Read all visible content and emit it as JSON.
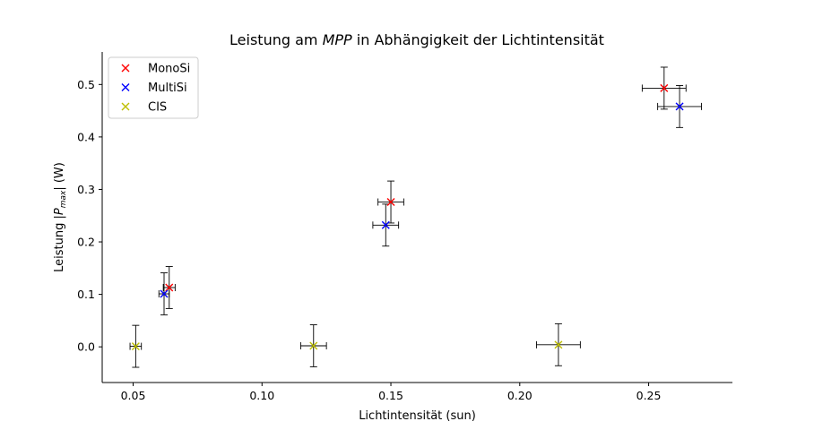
{
  "chart_data": {
    "type": "scatter",
    "title": "Leistung am MPP in Abhängigkeit der Lichtintensität",
    "title_parts": {
      "prefix": "Leistung am ",
      "italic": "MPP",
      "suffix": " in Abhängigkeit der Lichtintensität"
    },
    "xlabel": "Lichtintensität (sun)",
    "ylabel": "Leistung |P_max| (W)",
    "ylabel_parts": {
      "prefix": "Leistung |",
      "var": "P",
      "sub": "max",
      "suffix": "| (W)"
    },
    "xlim": [
      0.038,
      0.2825
    ],
    "ylim": [
      -0.068,
      0.562
    ],
    "x_ticks": [
      0.05,
      0.1,
      0.15,
      0.2,
      0.25
    ],
    "x_tick_labels": [
      "0.05",
      "0.10",
      "0.15",
      "0.20",
      "0.25"
    ],
    "y_ticks": [
      0.0,
      0.1,
      0.2,
      0.3,
      0.4,
      0.5
    ],
    "y_tick_labels": [
      "0.0",
      "0.1",
      "0.2",
      "0.3",
      "0.4",
      "0.5"
    ],
    "grid": false,
    "legend_position": "top-left",
    "errorbar_color": "#000000",
    "series": [
      {
        "name": "MonoSi",
        "color": "#ff0000",
        "marker": "x",
        "points": [
          {
            "x": 0.064,
            "y": 0.113,
            "xerr": 0.0023,
            "yerr": 0.04
          },
          {
            "x": 0.15,
            "y": 0.276,
            "xerr": 0.005,
            "yerr": 0.04
          },
          {
            "x": 0.256,
            "y": 0.493,
            "xerr": 0.0085,
            "yerr": 0.04
          }
        ]
      },
      {
        "name": "MultiSi",
        "color": "#0000ff",
        "marker": "x",
        "points": [
          {
            "x": 0.062,
            "y": 0.101,
            "xerr": 0.002,
            "yerr": 0.04
          },
          {
            "x": 0.148,
            "y": 0.232,
            "xerr": 0.005,
            "yerr": 0.04
          },
          {
            "x": 0.262,
            "y": 0.458,
            "xerr": 0.0085,
            "yerr": 0.04
          }
        ]
      },
      {
        "name": "CIS",
        "color": "#bfbf00",
        "marker": "x",
        "points": [
          {
            "x": 0.051,
            "y": 0.001,
            "xerr": 0.0022,
            "yerr": 0.04
          },
          {
            "x": 0.12,
            "y": 0.002,
            "xerr": 0.005,
            "yerr": 0.04
          },
          {
            "x": 0.215,
            "y": 0.004,
            "xerr": 0.0085,
            "yerr": 0.04
          }
        ]
      }
    ]
  }
}
